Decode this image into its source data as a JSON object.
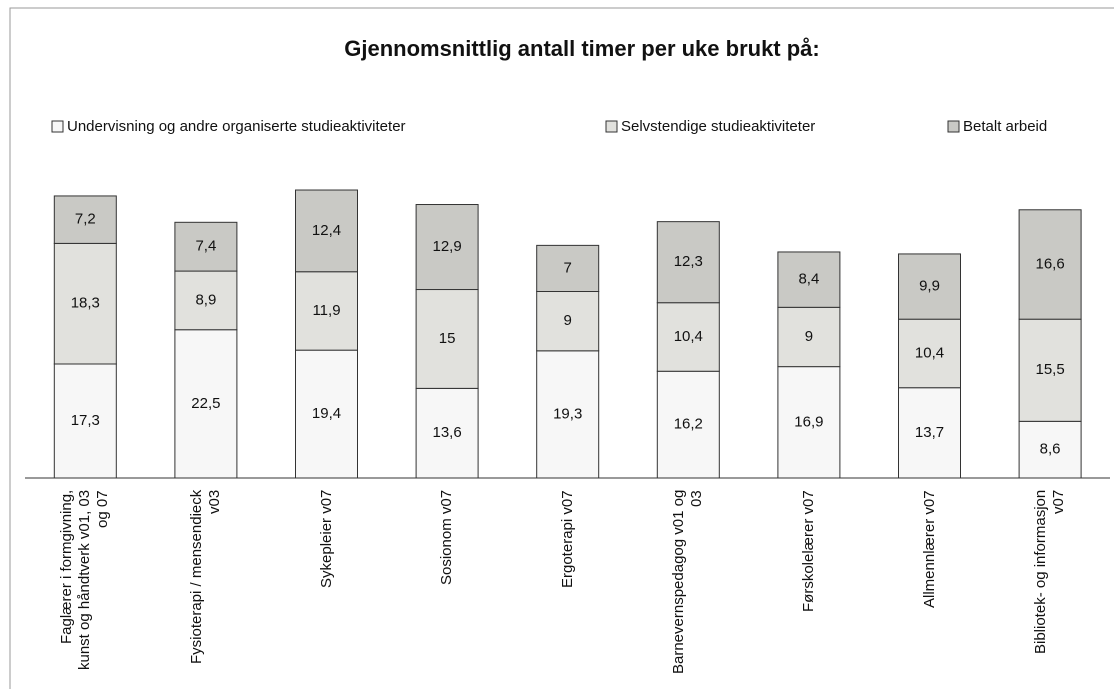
{
  "chart_data": {
    "type": "stacked_bar",
    "title": "Gjennomsnittlig antall timer per uke brukt på:",
    "categories": [
      "Faglærer i formgivning, kunst og håndtverk v01, 03 og 07",
      "Fysioterapi / mensendieck v03",
      "Sykepleier v07",
      "Sosionom v07",
      "Ergoterapi v07",
      "Barnevernspedagog v01 og 03",
      "Førskolelærer v07",
      "Allmennlærer v07",
      "Bibliotek- og informasjon v07"
    ],
    "series": [
      {
        "name": "Undervisning og andre organiserte studieaktiviteter",
        "color": "#f7f7f7",
        "values": [
          17.3,
          22.5,
          19.4,
          13.6,
          19.3,
          16.2,
          16.9,
          13.7,
          8.6
        ],
        "value_labels": [
          "17,3",
          "22,5",
          "19,4",
          "13,6",
          "19,3",
          "16,2",
          "16,9",
          "13,7",
          "8,6"
        ]
      },
      {
        "name": "Selvstendige studieaktiviteter",
        "color": "#e1e1dd",
        "values": [
          18.3,
          8.9,
          11.9,
          15,
          9,
          10.4,
          9,
          10.4,
          15.5
        ],
        "value_labels": [
          "18,3",
          "8,9",
          "11,9",
          "15",
          "9",
          "10,4",
          "9",
          "10,4",
          "15,5"
        ]
      },
      {
        "name": "Betalt arbeid",
        "color": "#c9c9c5",
        "values": [
          7.2,
          7.4,
          12.4,
          12.9,
          7,
          12.3,
          8.4,
          9.9,
          16.6
        ],
        "value_labels": [
          "7,2",
          "7,4",
          "12,4",
          "12,9",
          "7",
          "12,3",
          "8,4",
          "9,9",
          "16,6"
        ]
      }
    ]
  }
}
